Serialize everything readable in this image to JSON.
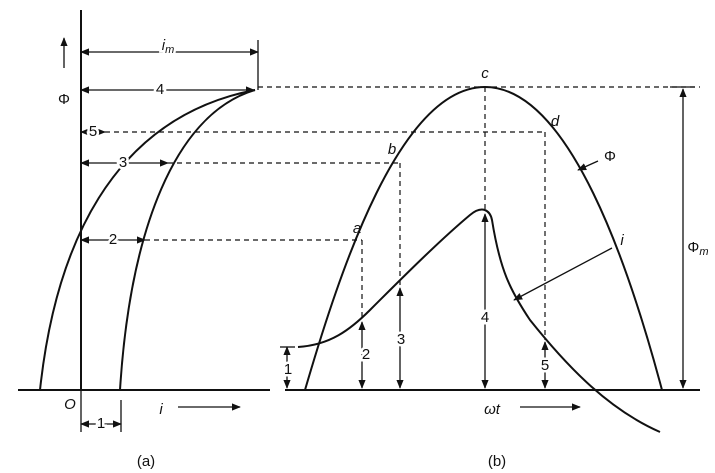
{
  "panel_a": {
    "caption": "(a)",
    "axis_y": "Φ",
    "origin": "O",
    "axis_x": "i",
    "i_max": {
      "text": "i",
      "sub": "m"
    },
    "steps": [
      "1",
      "2",
      "3",
      "4",
      "5"
    ]
  },
  "panel_b": {
    "caption": "(b)",
    "axis_x": "ωt",
    "flux": "Φ",
    "current": "i",
    "flux_max": {
      "text": "Φ",
      "sub": "m"
    },
    "points": [
      "a",
      "b",
      "c",
      "d"
    ],
    "steps": [
      "1",
      "2",
      "3",
      "4",
      "5"
    ]
  }
}
